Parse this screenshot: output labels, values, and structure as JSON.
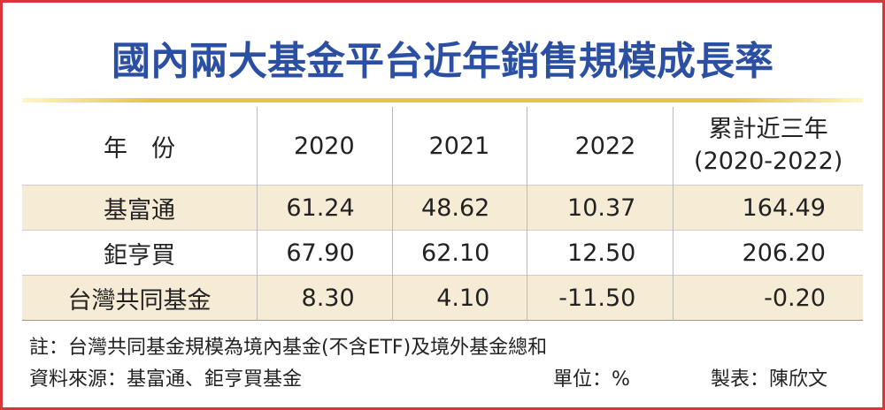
{
  "header": {
    "title": "國內兩大基金平台近年銷售規模成長率"
  },
  "table": {
    "header": [
      "年　份",
      "2020",
      "2021",
      "2022",
      [
        "累計近三年",
        "(2020-2022)"
      ]
    ],
    "rows": [
      [
        "基富通",
        "61.24",
        "48.62",
        "10.37",
        "164.49"
      ],
      [
        "鉅亨買",
        "67.90",
        "62.10",
        "12.50",
        "206.20"
      ],
      [
        "台灣共同基金",
        "8.30",
        "4.10",
        "-11.50",
        "-0.20"
      ]
    ]
  },
  "footer": {
    "note": "註：台灣共同基金規模為境內基金(不含ETF)及境外基金總和",
    "source": "資料來源：基富通、鉅亨買基金",
    "unit": "單位：%",
    "author": "製表：陳欣文"
  }
}
